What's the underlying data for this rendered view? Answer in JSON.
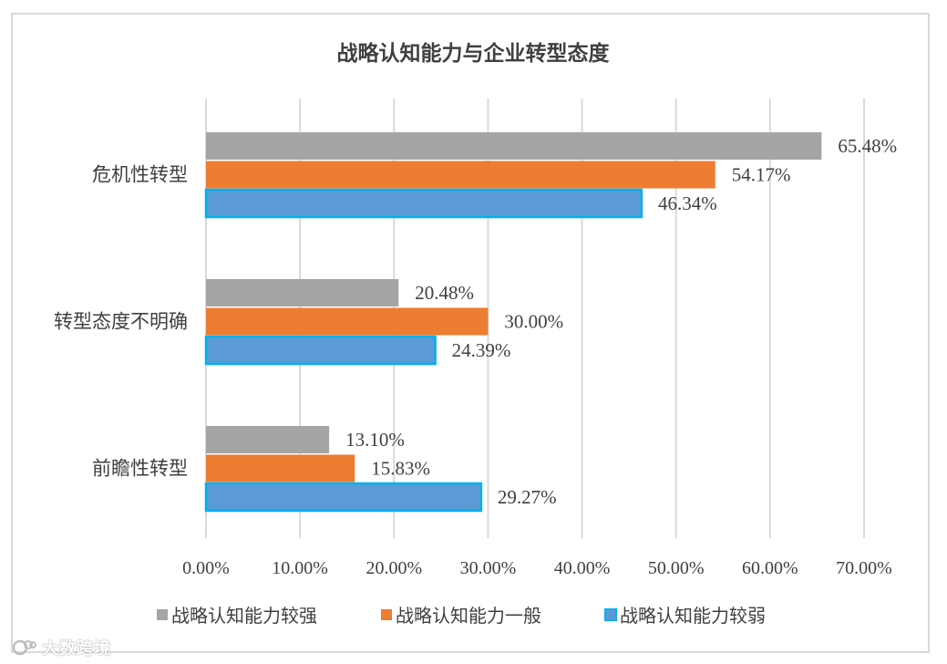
{
  "chart_data": {
    "type": "bar",
    "orientation": "horizontal",
    "title": "战略认知能力与企业转型态度",
    "categories": [
      "危机性转型",
      "转型态度不明确",
      "前瞻性转型"
    ],
    "series": [
      {
        "name": "战略认知能力较强",
        "color": "#a5a5a5",
        "values": [
          65.48,
          20.48,
          13.1
        ],
        "labels": [
          "65.48%",
          "20.48%",
          "13.10%"
        ]
      },
      {
        "name": "战略认知能力一般",
        "color": "#ed7d31",
        "values": [
          54.17,
          30.0,
          15.83
        ],
        "labels": [
          "54.17%",
          "30.00%",
          "15.83%"
        ]
      },
      {
        "name": "战略认知能力较弱",
        "color": "#5b9bd5",
        "border_color": "#00b0f0",
        "values": [
          46.34,
          24.39,
          29.27
        ],
        "labels": [
          "46.34%",
          "24.39%",
          "29.27%"
        ]
      }
    ],
    "x_ticks": [
      "0.00%",
      "10.00%",
      "20.00%",
      "30.00%",
      "40.00%",
      "50.00%",
      "60.00%",
      "70.00%"
    ],
    "xlim": [
      0,
      70
    ],
    "grid": true,
    "legend_position": "bottom"
  },
  "watermark": {
    "text": "大数跨境"
  }
}
